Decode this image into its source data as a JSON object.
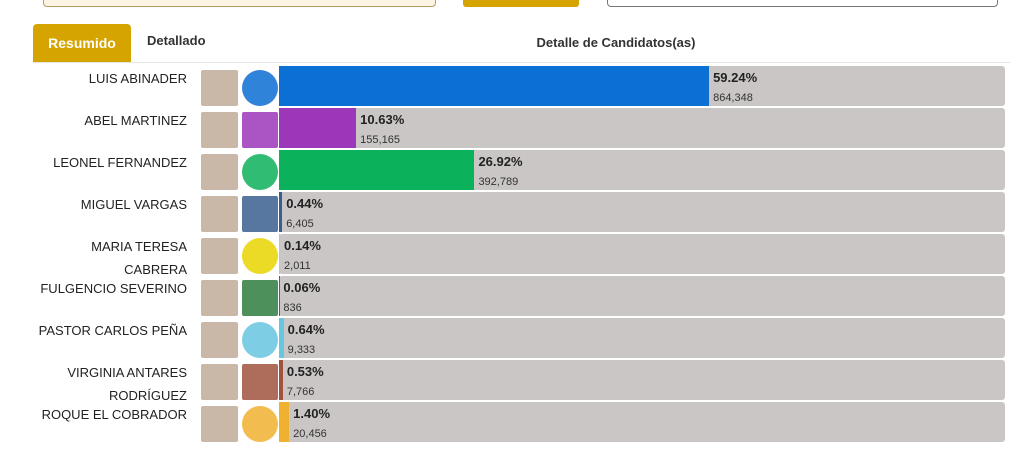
{
  "tabs": [
    "Resumido",
    "Detallado"
  ],
  "header": "Detalle de Candidatos(as)",
  "candidates": [
    {
      "name": "LUIS ABINADER",
      "percent": 59.24,
      "percent_label": "59.24%",
      "votes": 864348,
      "votes_label": "864,348",
      "color": "#0b6fd4"
    },
    {
      "name": "ABEL MARTINEZ",
      "percent": 10.63,
      "percent_label": "10.63%",
      "votes": 155165,
      "votes_label": "155,165",
      "color": "#9b37b8"
    },
    {
      "name": "LEONEL FERNANDEZ",
      "percent": 26.92,
      "percent_label": "26.92%",
      "votes": 392789,
      "votes_label": "392,789",
      "color": "#0cb15b"
    },
    {
      "name": "MIGUEL VARGAS",
      "percent": 0.44,
      "percent_label": "0.44%",
      "votes": 6405,
      "votes_label": "6,405",
      "color": "#3a5f8f"
    },
    {
      "name": "MARIA TERESA CABRERA",
      "percent": 0.14,
      "percent_label": "0.14%",
      "votes": 2011,
      "votes_label": "2,011",
      "color": "#e8d400"
    },
    {
      "name": "FULGENCIO SEVERINO",
      "percent": 0.06,
      "percent_label": "0.06%",
      "votes": 836,
      "votes_label": "836",
      "color": "#2e7d3e"
    },
    {
      "name": "PASTOR CARLOS PEÑA",
      "percent": 0.64,
      "percent_label": "0.64%",
      "votes": 9333,
      "votes_label": "9,333",
      "color": "#66c6e0"
    },
    {
      "name": "VIRGINIA ANTARES RODRÍGUEZ",
      "percent": 0.53,
      "percent_label": "0.53%",
      "votes": 7766,
      "votes_label": "7,766",
      "color": "#a0523d"
    },
    {
      "name": "ROQUE EL COBRADOR",
      "percent": 1.4,
      "percent_label": "1.40%",
      "votes": 20456,
      "votes_label": "20,456",
      "color": "#f0b030"
    }
  ]
}
